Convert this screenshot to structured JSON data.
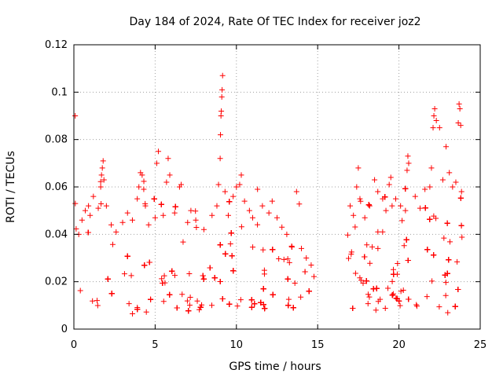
{
  "chart_data": {
    "type": "scatter",
    "title": "Day 184 of 2024, Rate Of TEC Index for receiver joz2",
    "xlabel": "GPS time / hours",
    "ylabel": "ROTI / TECUs",
    "xlim": [
      0,
      25
    ],
    "ylim": [
      0,
      0.12
    ],
    "xticks": [
      0,
      5,
      10,
      15,
      20,
      25
    ],
    "yticks": [
      0,
      0.02,
      0.04,
      0.06,
      0.08,
      0.1,
      0.12
    ],
    "xtick_labels": [
      "0",
      "5",
      "10",
      "15",
      "20",
      "25"
    ],
    "ytick_labels": [
      "0",
      "0.02",
      "0.04",
      "0.06",
      "0.08",
      "0.1",
      "0.12"
    ],
    "grid": true,
    "marker": "+",
    "color": "#ff0000",
    "data_gap_hours": [
      14.8,
      16.8
    ],
    "series": [
      {
        "name": "joz2 ROTI",
        "points": [
          [
            0.08,
            0.09
          ],
          [
            0.3,
            0.04
          ],
          [
            0.5,
            0.046
          ],
          [
            0.7,
            0.05
          ],
          [
            0.9,
            0.052
          ],
          [
            1.0,
            0.048
          ],
          [
            1.2,
            0.056
          ],
          [
            1.5,
            0.051
          ],
          [
            1.65,
            0.06
          ],
          [
            1.7,
            0.065
          ],
          [
            1.75,
            0.068
          ],
          [
            1.8,
            0.071
          ],
          [
            1.85,
            0.063
          ],
          [
            2.0,
            0.052
          ],
          [
            2.3,
            0.044
          ],
          [
            2.6,
            0.041
          ],
          [
            3.0,
            0.045
          ],
          [
            3.3,
            0.049
          ],
          [
            3.6,
            0.046
          ],
          [
            3.9,
            0.055
          ],
          [
            4.0,
            0.06
          ],
          [
            4.1,
            0.066
          ],
          [
            4.2,
            0.065
          ],
          [
            4.3,
            0.059
          ],
          [
            4.4,
            0.052
          ],
          [
            4.6,
            0.044
          ],
          [
            5.0,
            0.047
          ],
          [
            5.1,
            0.07
          ],
          [
            5.2,
            0.075
          ],
          [
            5.5,
            0.048
          ],
          [
            5.7,
            0.062
          ],
          [
            5.8,
            0.072
          ],
          [
            5.9,
            0.065
          ],
          [
            6.2,
            0.049
          ],
          [
            6.5,
            0.06
          ],
          [
            6.6,
            0.061
          ],
          [
            7.0,
            0.045
          ],
          [
            7.2,
            0.05
          ],
          [
            7.5,
            0.046
          ],
          [
            8.0,
            0.042
          ],
          [
            8.5,
            0.048
          ],
          [
            8.8,
            0.052
          ],
          [
            8.9,
            0.061
          ],
          [
            9.0,
            0.072
          ],
          [
            9.02,
            0.082
          ],
          [
            9.05,
            0.09
          ],
          [
            9.07,
            0.092
          ],
          [
            9.1,
            0.098
          ],
          [
            9.12,
            0.101
          ],
          [
            9.15,
            0.107
          ],
          [
            9.3,
            0.058
          ],
          [
            9.5,
            0.048
          ],
          [
            9.8,
            0.056
          ],
          [
            10.0,
            0.06
          ],
          [
            10.2,
            0.061
          ],
          [
            10.3,
            0.065
          ],
          [
            10.5,
            0.054
          ],
          [
            10.8,
            0.05
          ],
          [
            11.0,
            0.047
          ],
          [
            11.3,
            0.059
          ],
          [
            11.6,
            0.052
          ],
          [
            12.0,
            0.049
          ],
          [
            12.2,
            0.054
          ],
          [
            12.5,
            0.047
          ],
          [
            12.8,
            0.043
          ],
          [
            13.1,
            0.04
          ],
          [
            13.4,
            0.035
          ],
          [
            13.7,
            0.058
          ],
          [
            14.0,
            0.034
          ],
          [
            14.3,
            0.03
          ],
          [
            14.6,
            0.027
          ],
          [
            17.0,
            0.052
          ],
          [
            17.2,
            0.048
          ],
          [
            17.4,
            0.06
          ],
          [
            17.5,
            0.068
          ],
          [
            17.6,
            0.055
          ],
          [
            17.9,
            0.047
          ],
          [
            18.2,
            0.052
          ],
          [
            18.5,
            0.063
          ],
          [
            18.7,
            0.058
          ],
          [
            19.0,
            0.055
          ],
          [
            19.2,
            0.05
          ],
          [
            19.4,
            0.061
          ],
          [
            19.5,
            0.064
          ],
          [
            19.8,
            0.055
          ],
          [
            20.1,
            0.052
          ],
          [
            20.4,
            0.05
          ],
          [
            20.5,
            0.067
          ],
          [
            20.55,
            0.073
          ],
          [
            20.6,
            0.07
          ],
          [
            21.0,
            0.056
          ],
          [
            21.3,
            0.051
          ],
          [
            21.6,
            0.059
          ],
          [
            21.9,
            0.06
          ],
          [
            22.0,
            0.068
          ],
          [
            22.1,
            0.085
          ],
          [
            22.15,
            0.09
          ],
          [
            22.2,
            0.093
          ],
          [
            22.3,
            0.088
          ],
          [
            22.5,
            0.085
          ],
          [
            22.7,
            0.063
          ],
          [
            22.9,
            0.077
          ],
          [
            23.1,
            0.066
          ],
          [
            23.3,
            0.06
          ],
          [
            23.5,
            0.062
          ],
          [
            23.65,
            0.087
          ],
          [
            23.7,
            0.095
          ],
          [
            23.75,
            0.093
          ],
          [
            23.8,
            0.086
          ],
          [
            23.85,
            0.058
          ]
        ]
      }
    ]
  }
}
